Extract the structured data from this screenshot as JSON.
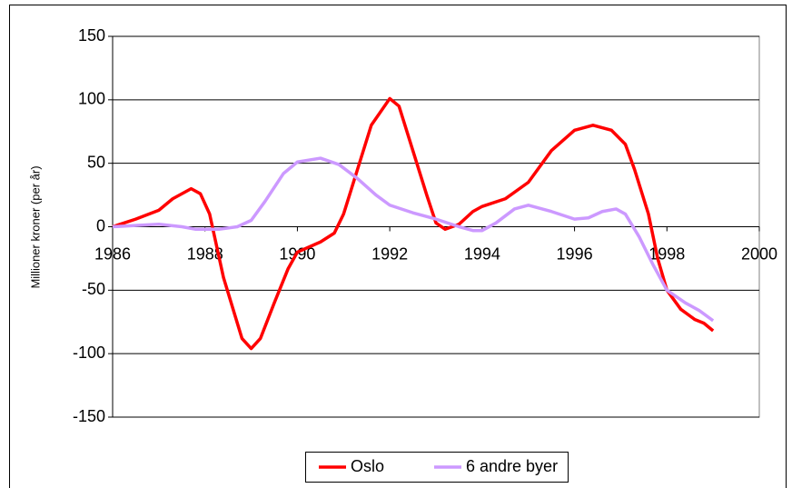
{
  "chart_data": {
    "type": "line",
    "y_label": "Millioner kroner (per år)",
    "xlim": [
      1986,
      2000
    ],
    "xticks": [
      1986,
      1988,
      1990,
      1992,
      1994,
      1996,
      1998,
      2000
    ],
    "ylim": [
      -150,
      150
    ],
    "yticks": [
      -150,
      -100,
      -50,
      0,
      50,
      100,
      150
    ],
    "grid": true,
    "legend": "bottom",
    "series": [
      {
        "name": "Oslo",
        "color": "#ff0000",
        "x": [
          1986,
          1986.5,
          1987,
          1987.3,
          1987.7,
          1987.9,
          1988.1,
          1988.4,
          1988.8,
          1989,
          1989.2,
          1989.5,
          1989.8,
          1990,
          1990.5,
          1990.8,
          1991,
          1991.3,
          1991.6,
          1992,
          1992.2,
          1992.5,
          1992.8,
          1993,
          1993.2,
          1993.5,
          1993.8,
          1994,
          1994.5,
          1995,
          1995.5,
          1996,
          1996.4,
          1996.8,
          1997.1,
          1997.3,
          1997.6,
          1997.8,
          1998,
          1998.3,
          1998.6,
          1998.8,
          1999
        ],
        "values": [
          0,
          6,
          13,
          22,
          30,
          26,
          10,
          -40,
          -88,
          -96,
          -88,
          -60,
          -33,
          -20,
          -12,
          -5,
          10,
          45,
          80,
          101,
          95,
          60,
          25,
          3,
          -2,
          2,
          12,
          16,
          22,
          35,
          60,
          76,
          80,
          76,
          65,
          45,
          10,
          -25,
          -50,
          -65,
          -73,
          -76,
          -82
        ]
      },
      {
        "name": "6 andre byer",
        "color": "#cc99ff",
        "x": [
          1986,
          1986.5,
          1987,
          1987.5,
          1987.8,
          1988.3,
          1988.7,
          1989,
          1989.3,
          1989.7,
          1990,
          1990.5,
          1990.9,
          1991.3,
          1991.7,
          1992,
          1992.5,
          1993,
          1993.5,
          1993.8,
          1994,
          1994.3,
          1994.7,
          1995,
          1995.5,
          1996,
          1996.3,
          1996.6,
          1996.9,
          1997.1,
          1997.4,
          1997.7,
          1998,
          1998.4,
          1998.7,
          1999
        ],
        "values": [
          0,
          1,
          2,
          0,
          -2,
          -2,
          0,
          5,
          20,
          42,
          51,
          54,
          49,
          38,
          25,
          17,
          11,
          6,
          0,
          -3,
          -3,
          3,
          14,
          17,
          12,
          6,
          7,
          12,
          14,
          10,
          -8,
          -30,
          -50,
          -60,
          -66,
          -74
        ]
      }
    ]
  }
}
